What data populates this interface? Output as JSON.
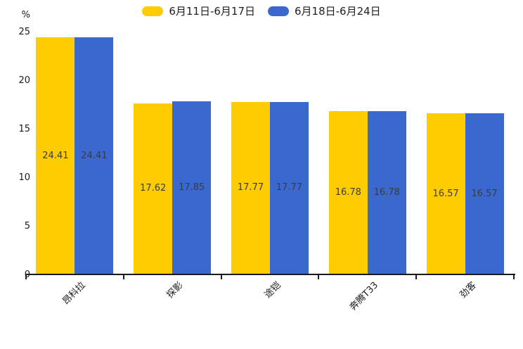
{
  "chart_data": {
    "type": "bar",
    "title": "",
    "categories": [
      "昂科拉",
      "探影",
      "途铠",
      "奔腾T33",
      "劲客"
    ],
    "series": [
      {
        "name": "6月11日-6月17日",
        "color": "#FECC00",
        "values": [
          24.41,
          17.62,
          17.77,
          16.78,
          16.57
        ]
      },
      {
        "name": "6月18日-6月24日",
        "color": "#3A68CE",
        "values": [
          24.41,
          17.85,
          17.77,
          16.78,
          16.57
        ]
      }
    ],
    "xlabel": "",
    "ylabel": "%",
    "ylim": [
      0,
      25
    ],
    "yticks": [
      0,
      5,
      10,
      15,
      20,
      25
    ],
    "grid": false,
    "legend_position": "top-center",
    "value_labels": "inside-middle",
    "value_label_color": "#3c3c3c",
    "axis_color": "#1a1a1a",
    "background_color": "#ffffff"
  }
}
